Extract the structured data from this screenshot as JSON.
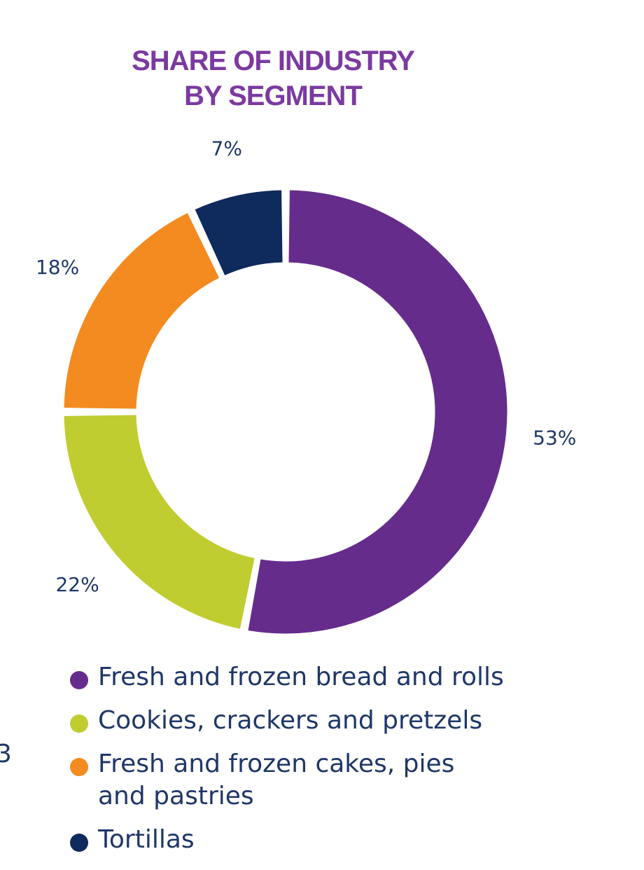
{
  "chart_data": {
    "type": "pie",
    "title": [
      "SHARE OF INDUSTRY",
      "BY SEGMENT"
    ],
    "labels": [
      "Fresh and frozen bread and rolls",
      "Cookies, crackers and pretzels",
      "Fresh and frozen cakes, pies and pastries",
      "Tortillas"
    ],
    "values": [
      53,
      22,
      18,
      7
    ],
    "value_labels": [
      "53%",
      "22%",
      "18%",
      "7%"
    ],
    "colors": [
      "#652c8c",
      "#bfcd31",
      "#f48b20",
      "#0f2a5c"
    ],
    "donut": true,
    "legend_position": "bottom"
  },
  "legend": {
    "items": [
      {
        "label_lines": [
          "Fresh and frozen bread and rolls"
        ]
      },
      {
        "label_lines": [
          "Cookies, crackers and pretzels"
        ]
      },
      {
        "label_lines": [
          "Fresh and frozen cakes, pies",
          "and pastries"
        ]
      },
      {
        "label_lines": [
          "Tortillas"
        ]
      }
    ]
  },
  "stray_text": "3",
  "colors": {
    "title": "#7b3aa0",
    "label": "#1f3767"
  }
}
